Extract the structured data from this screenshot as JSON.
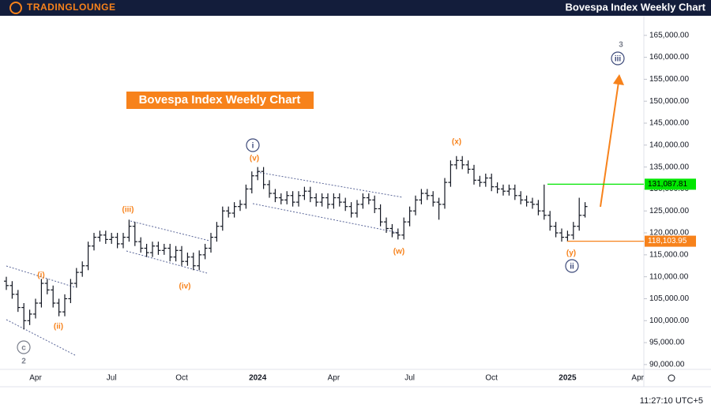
{
  "header": {
    "logo": "TRADINGLOUNGE",
    "title": "Bovespa Index Weekly Chart"
  },
  "chart_data": {
    "type": "ohlc",
    "title": "Bovespa Index Weekly Chart",
    "color": "#131722",
    "categories": [
      null,
      null,
      null,
      null,
      null,
      "Apr",
      null,
      null,
      null,
      null,
      null,
      null,
      null,
      null,
      null,
      null,
      null,
      null,
      "Jul",
      null,
      null,
      null,
      null,
      null,
      null,
      null,
      null,
      null,
      null,
      null,
      "Oct",
      null,
      null,
      null,
      null,
      null,
      null,
      null,
      null,
      null,
      null,
      null,
      null,
      "2024",
      null,
      null,
      null,
      null,
      null,
      null,
      null,
      null,
      null,
      null,
      null,
      null,
      "Apr",
      null,
      null,
      null,
      null,
      null,
      null,
      null,
      null,
      null,
      null,
      null,
      null,
      "Jul",
      null,
      null,
      null,
      null,
      null,
      null,
      null,
      null,
      null,
      null,
      null,
      null,
      null,
      "Oct",
      null,
      null,
      null,
      null,
      null,
      null,
      null,
      null,
      null,
      null,
      null,
      null,
      "2025",
      null,
      null,
      null,
      null,
      null,
      null,
      null,
      null,
      null,
      null,
      null,
      "Apr"
    ],
    "open": [
      109000,
      108000,
      106000,
      103000,
      100000,
      101500,
      104000,
      108500,
      107000,
      104000,
      102000,
      105000,
      108500,
      111000,
      112500,
      117000,
      119000,
      119500,
      118500,
      119000,
      117500,
      119000,
      121500,
      118000,
      116500,
      115500,
      117000,
      116000,
      116500,
      114500,
      116000,
      113500,
      114500,
      112500,
      115000,
      116500,
      119000,
      121500,
      125000,
      124500,
      126000,
      126500,
      130000,
      133000,
      134000,
      131000,
      129000,
      128000,
      127500,
      128500,
      127000,
      128500,
      129500,
      128000,
      127000,
      128000,
      126500,
      128000,
      127000,
      126000,
      124500,
      126500,
      128000,
      127500,
      125500,
      122500,
      121000,
      120000,
      119500,
      122500,
      125000,
      127500,
      129000,
      128500,
      127000,
      126500,
      131500,
      135500,
      136500,
      135500,
      134500,
      132000,
      131500,
      132500,
      130500,
      130000,
      129500,
      130000,
      128500,
      127500,
      127000,
      126500,
      125000,
      124000,
      121500,
      120000,
      119000,
      119500,
      121500,
      124000,
      null,
      null,
      null,
      null,
      null,
      null,
      null,
      null,
      null
    ],
    "high": [
      110000,
      109000,
      107000,
      104000,
      102500,
      105000,
      109500,
      109500,
      108000,
      105000,
      106000,
      109500,
      112000,
      113500,
      118000,
      120000,
      120500,
      120500,
      120000,
      120000,
      120000,
      123000,
      122500,
      119000,
      117500,
      118000,
      118000,
      117500,
      117500,
      117000,
      117000,
      115500,
      115500,
      116000,
      117500,
      120000,
      122500,
      126000,
      126000,
      127000,
      127500,
      131000,
      134000,
      135000,
      135000,
      132000,
      130000,
      129000,
      129500,
      129500,
      129500,
      130500,
      130500,
      129000,
      129000,
      129000,
      129000,
      129000,
      128000,
      127000,
      127500,
      129000,
      129000,
      128500,
      126500,
      123500,
      122000,
      121000,
      123500,
      126000,
      128500,
      130000,
      130000,
      129500,
      128000,
      132500,
      136500,
      137500,
      137500,
      136500,
      135500,
      133000,
      133500,
      133500,
      131500,
      131000,
      131000,
      131000,
      129500,
      128500,
      128000,
      127500,
      131000,
      125000,
      122500,
      121000,
      120500,
      122500,
      128000,
      127000,
      null,
      null,
      null,
      null,
      null,
      null,
      null,
      null,
      null
    ],
    "low": [
      107000,
      105000,
      102000,
      98000,
      99000,
      100500,
      103000,
      106000,
      103000,
      101000,
      101000,
      104000,
      107500,
      110000,
      111500,
      116000,
      118000,
      117500,
      117500,
      116500,
      116500,
      118000,
      117000,
      115500,
      114500,
      114500,
      115000,
      115000,
      113500,
      113500,
      112500,
      112500,
      111500,
      111500,
      114000,
      115500,
      118000,
      120500,
      123500,
      123500,
      125000,
      125500,
      129000,
      132000,
      130000,
      128000,
      127000,
      126500,
      126500,
      126000,
      126000,
      127500,
      127000,
      126000,
      126000,
      125500,
      125500,
      126000,
      125000,
      123500,
      123500,
      125500,
      126500,
      124500,
      121500,
      120000,
      119000,
      118500,
      118500,
      121500,
      124000,
      126500,
      127500,
      126000,
      123000,
      125500,
      130500,
      134500,
      134500,
      133500,
      131000,
      130500,
      130500,
      129500,
      129000,
      128500,
      128500,
      127500,
      126500,
      126000,
      125500,
      124000,
      123000,
      120500,
      119000,
      118000,
      118000,
      118500,
      120500,
      123500,
      null,
      null,
      null,
      null,
      null,
      null,
      null,
      null,
      null
    ],
    "close": [
      108000,
      106000,
      103000,
      100000,
      101500,
      104000,
      108500,
      107000,
      104000,
      102000,
      105000,
      108500,
      111000,
      112500,
      117000,
      119000,
      119500,
      118500,
      119000,
      117500,
      119000,
      121500,
      118000,
      116500,
      115500,
      117000,
      116000,
      116500,
      114500,
      116000,
      113500,
      114500,
      112500,
      115000,
      116500,
      119000,
      121500,
      125000,
      124500,
      126000,
      126500,
      130000,
      133000,
      134000,
      131000,
      129000,
      128000,
      127500,
      128500,
      127000,
      128500,
      129500,
      128000,
      127000,
      128000,
      126500,
      128000,
      127000,
      126000,
      124500,
      126500,
      128000,
      127500,
      125500,
      122500,
      121000,
      120000,
      119500,
      122500,
      125000,
      127500,
      129000,
      128500,
      127000,
      126500,
      131500,
      135500,
      136500,
      135500,
      134500,
      132000,
      131500,
      132500,
      130500,
      130000,
      129500,
      130000,
      128500,
      127500,
      127000,
      126500,
      125000,
      124000,
      121500,
      120000,
      119000,
      119500,
      121500,
      124000,
      126000,
      null,
      null,
      null,
      null,
      null,
      null,
      null,
      null,
      null
    ],
    "ylim": [
      88900,
      169100
    ],
    "yticks": [
      {
        "value": 90000,
        "label": "90,000.00"
      },
      {
        "value": 95000,
        "label": "95,000.00"
      },
      {
        "value": 100000,
        "label": "100,000.00"
      },
      {
        "value": 105000,
        "label": "105,000.00"
      },
      {
        "value": 110000,
        "label": "110,000.00"
      },
      {
        "value": 115000,
        "label": "115,000.00"
      },
      {
        "value": 120000,
        "label": "120,000.00"
      },
      {
        "value": 125000,
        "label": "125,000.00"
      },
      {
        "value": 130000,
        "label": "130,000.00"
      },
      {
        "value": 135000,
        "label": "135,000.00"
      },
      {
        "value": 140000,
        "label": "140,000.00"
      },
      {
        "value": 145000,
        "label": "145,000.00"
      },
      {
        "value": 150000,
        "label": "150,000.00"
      },
      {
        "value": 155000,
        "label": "155,000.00"
      },
      {
        "value": 160000,
        "label": "160,000.00"
      },
      {
        "value": 165000,
        "label": "165,000.00"
      }
    ],
    "grid": false,
    "levels": [
      {
        "value": 131087.81,
        "label": "131,087.81",
        "color": "#00e600",
        "text_color": "#000000"
      },
      {
        "value": 118103.95,
        "label": "118,103.95",
        "color": "#f7821b",
        "text_color": "#ffffff"
      }
    ],
    "annotations": [
      {
        "text": "(i)",
        "color": "#f7821b",
        "circled": false
      },
      {
        "text": "(ii)",
        "color": "#f7821b",
        "circled": false
      },
      {
        "text": "(iii)",
        "color": "#f7821b",
        "circled": false
      },
      {
        "text": "(iv)",
        "color": "#f7821b",
        "circled": false
      },
      {
        "text": "(v)",
        "color": "#f7821b",
        "circled": false
      },
      {
        "text": "(w)",
        "color": "#f7821b",
        "circled": false
      },
      {
        "text": "(x)",
        "color": "#f7821b",
        "circled": false
      },
      {
        "text": "(y)",
        "color": "#f7821b",
        "circled": false
      },
      {
        "text": "i",
        "color": "#3d4a7a",
        "circled": true
      },
      {
        "text": "ii",
        "color": "#3d4a7a",
        "circled": true
      },
      {
        "text": "iii",
        "color": "#3d4a7a",
        "circled": true
      },
      {
        "text": "3",
        "color": "#7a7f8c",
        "circled": false
      },
      {
        "text": "c",
        "color": "#7a7f8c",
        "circled": true
      },
      {
        "text": "2",
        "color": "#7a7f8c",
        "circled": false
      }
    ]
  },
  "footer": {
    "time": "11:27:10 UTC+5"
  }
}
